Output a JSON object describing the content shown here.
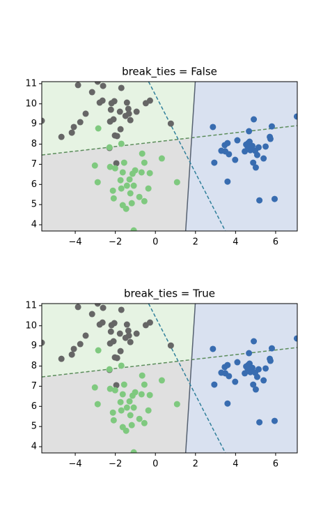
{
  "chart_data": [
    {
      "type": "scatter",
      "title": "break_ties = False",
      "xlim": [
        -5.67,
        7.08
      ],
      "ylim": [
        3.69,
        11.1
      ],
      "xticks": [
        {
          "value": -4,
          "label": "−4"
        },
        {
          "value": -2,
          "label": "−2"
        },
        0,
        2,
        4,
        6
      ],
      "yticks": [
        4,
        5,
        6,
        7,
        8,
        9,
        10,
        11
      ],
      "region_colors": [
        "#e6f3e3",
        "#e0e0e0",
        "#d9e1f0"
      ],
      "lines": [
        {
          "x": [
            -5.67,
            7.08
          ],
          "y": [
            7.46,
            8.92
          ],
          "color": "#5b8c5b",
          "dash": true
        },
        {
          "x": [
            1.99,
            1.51
          ],
          "y": [
            11.1,
            3.69
          ],
          "color": "#556070",
          "dash": false
        },
        {
          "x": [
            -0.34,
            3.49
          ],
          "y": [
            11.1,
            3.69
          ],
          "color": "#2f7f9a",
          "dash": true
        }
      ],
      "series": [
        {
          "color": "#666666",
          "x": [
            -5.67,
            -4.69,
            -4.17,
            -4.07,
            -3.86,
            -3.75,
            -3.48,
            -3.16,
            -2.88,
            -2.78,
            -2.64,
            -2.61,
            -2.26,
            -2.22,
            -2.19,
            -2.05,
            -2.09,
            -2.02,
            -1.91,
            -1.77,
            -1.74,
            -1.7,
            -1.49,
            -1.42,
            -1.35,
            -1.32,
            -1.25,
            -0.94,
            -0.48,
            -0.27,
            0.77,
            -1.95,
            -2.29
          ],
          "values": [
            9.16,
            8.36,
            8.57,
            8.85,
            10.93,
            9.09,
            9.51,
            10.58,
            11.1,
            10.06,
            10.16,
            10.89,
            9.12,
            9.71,
            10.03,
            10.13,
            9.23,
            8.43,
            8.4,
            9.61,
            8.74,
            10.79,
            9.4,
            10.06,
            9.75,
            9.51,
            9.19,
            9.61,
            10.03,
            10.16,
            9.02,
            7.05,
            7.81
          ]
        },
        {
          "color": "#7fc97f",
          "x": [
            -2.85,
            -3.02,
            -2.88,
            -2.29,
            -2.26,
            -2.12,
            -2.08,
            -2.01,
            -1.74,
            -1.7,
            -1.63,
            -1.56,
            -1.7,
            -1.63,
            -1.46,
            -1.42,
            -1.29,
            -1.25,
            -1.18,
            -1.14,
            -1.08,
            -1.01,
            -0.69,
            -0.8,
            -0.55,
            -0.55,
            -0.66,
            -0.35,
            -0.28,
            0.32,
            1.08,
            -1.08
          ],
          "values": [
            8.78,
            6.94,
            6.11,
            7.84,
            6.87,
            5.69,
            5.31,
            6.8,
            6.21,
            8.02,
            6.6,
            7.08,
            5.8,
            4.97,
            4.79,
            5.94,
            6.25,
            5.56,
            5.07,
            6.53,
            5.94,
            6.7,
            6.6,
            5.38,
            5.17,
            7.08,
            7.53,
            5.8,
            6.56,
            7.29,
            6.11,
            3.72
          ]
        },
        {
          "color": "#386cb0",
          "x": [
            2.87,
            2.94,
            3.29,
            3.46,
            3.49,
            3.6,
            3.6,
            3.67,
            4.09,
            3.98,
            4.46,
            4.53,
            4.6,
            4.63,
            4.67,
            4.7,
            4.74,
            4.84,
            4.91,
            4.88,
            4.98,
            5.01,
            5.08,
            5.15,
            5.19,
            5.4,
            5.5,
            5.71,
            5.74,
            5.81,
            5.95,
            7.06
          ],
          "values": [
            8.85,
            7.08,
            7.67,
            7.95,
            7.64,
            8.05,
            6.14,
            7.5,
            8.19,
            7.22,
            7.64,
            7.98,
            7.88,
            8.05,
            8.64,
            8.12,
            7.7,
            7.91,
            9.23,
            7.08,
            7.67,
            6.84,
            7.46,
            7.84,
            5.21,
            7.29,
            7.88,
            8.36,
            8.26,
            8.88,
            5.28,
            9.37
          ]
        }
      ]
    },
    {
      "type": "scatter",
      "title": "break_ties = True",
      "xlim": [
        -5.67,
        7.08
      ],
      "ylim": [
        3.69,
        11.1
      ],
      "xticks": [
        {
          "value": -4,
          "label": "−4"
        },
        {
          "value": -2,
          "label": "−2"
        },
        0,
        2,
        4,
        6
      ],
      "yticks": [
        4,
        5,
        6,
        7,
        8,
        9,
        10,
        11
      ],
      "region_colors": [
        "#e6f3e3",
        "#e0e0e0",
        "#d9e1f0"
      ],
      "lines": [
        {
          "x": [
            -5.67,
            7.08
          ],
          "y": [
            7.46,
            8.92
          ],
          "color": "#5b8c5b",
          "dash": true
        },
        {
          "x": [
            1.99,
            1.51
          ],
          "y": [
            11.1,
            3.69
          ],
          "color": "#556070",
          "dash": false
        },
        {
          "x": [
            -0.34,
            3.49
          ],
          "y": [
            11.1,
            3.69
          ],
          "color": "#2f7f9a",
          "dash": true
        }
      ],
      "series": [
        {
          "color": "#666666",
          "x": [
            -5.67,
            -4.69,
            -4.17,
            -4.07,
            -3.86,
            -3.75,
            -3.48,
            -3.16,
            -2.88,
            -2.78,
            -2.64,
            -2.61,
            -2.26,
            -2.22,
            -2.19,
            -2.05,
            -2.09,
            -2.02,
            -1.91,
            -1.77,
            -1.74,
            -1.7,
            -1.49,
            -1.42,
            -1.35,
            -1.32,
            -1.25,
            -0.94,
            -0.48,
            -0.27,
            0.77,
            -1.95,
            -2.29
          ],
          "values": [
            9.16,
            8.36,
            8.57,
            8.85,
            10.93,
            9.09,
            9.51,
            10.58,
            11.1,
            10.06,
            10.16,
            10.89,
            9.12,
            9.71,
            10.03,
            10.13,
            9.23,
            8.43,
            8.4,
            9.61,
            8.74,
            10.79,
            9.4,
            10.06,
            9.75,
            9.51,
            9.19,
            9.61,
            10.03,
            10.16,
            9.02,
            7.05,
            7.81
          ]
        },
        {
          "color": "#7fc97f",
          "x": [
            -2.85,
            -3.02,
            -2.88,
            -2.29,
            -2.26,
            -2.12,
            -2.08,
            -2.01,
            -1.74,
            -1.7,
            -1.63,
            -1.56,
            -1.7,
            -1.63,
            -1.46,
            -1.42,
            -1.29,
            -1.25,
            -1.18,
            -1.14,
            -1.08,
            -1.01,
            -0.69,
            -0.8,
            -0.55,
            -0.55,
            -0.66,
            -0.35,
            -0.28,
            0.32,
            1.08,
            -1.08
          ],
          "values": [
            8.78,
            6.94,
            6.11,
            7.84,
            6.87,
            5.69,
            5.31,
            6.8,
            6.21,
            8.02,
            6.6,
            7.08,
            5.8,
            4.97,
            4.79,
            5.94,
            6.25,
            5.56,
            5.07,
            6.53,
            5.94,
            6.7,
            6.6,
            5.38,
            5.17,
            7.08,
            7.53,
            5.8,
            6.56,
            7.29,
            6.11,
            3.72
          ]
        },
        {
          "color": "#386cb0",
          "x": [
            2.87,
            2.94,
            3.29,
            3.46,
            3.49,
            3.6,
            3.6,
            3.67,
            4.09,
            3.98,
            4.46,
            4.53,
            4.6,
            4.63,
            4.67,
            4.7,
            4.74,
            4.84,
            4.91,
            4.88,
            4.98,
            5.01,
            5.08,
            5.15,
            5.19,
            5.4,
            5.5,
            5.71,
            5.74,
            5.81,
            5.95,
            7.06
          ],
          "values": [
            8.85,
            7.08,
            7.67,
            7.95,
            7.64,
            8.05,
            6.14,
            7.5,
            8.19,
            7.22,
            7.64,
            7.98,
            7.88,
            8.05,
            8.64,
            8.12,
            7.7,
            7.91,
            9.23,
            7.08,
            7.67,
            6.84,
            7.46,
            7.84,
            5.21,
            7.29,
            7.88,
            8.36,
            8.26,
            8.88,
            5.28,
            9.37
          ]
        }
      ]
    }
  ]
}
